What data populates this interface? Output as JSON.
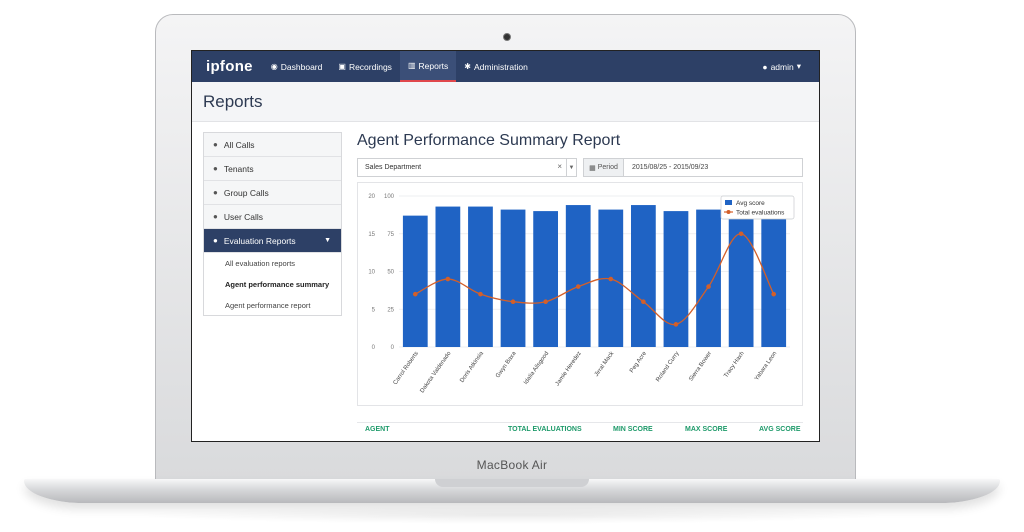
{
  "device": {
    "label": "MacBook Air"
  },
  "app": {
    "logo": "ipfone",
    "nav": [
      {
        "label": "Dashboard",
        "icon": "dashboard-icon"
      },
      {
        "label": "Recordings",
        "icon": "recordings-icon"
      },
      {
        "label": "Reports",
        "icon": "bar-chart-icon"
      },
      {
        "label": "Administration",
        "icon": "gear-icon"
      }
    ],
    "user": {
      "label": "admin"
    }
  },
  "page": {
    "title": "Reports"
  },
  "sidebar": {
    "items": [
      {
        "label": "All Calls"
      },
      {
        "label": "Tenants"
      },
      {
        "label": "Group Calls"
      },
      {
        "label": "User Calls"
      },
      {
        "label": "Evaluation Reports"
      }
    ],
    "subitems": [
      {
        "label": "All evaluation reports"
      },
      {
        "label": "Agent performance summary"
      },
      {
        "label": "Agent performance report"
      }
    ]
  },
  "report": {
    "title": "Agent Performance Summary Report",
    "department": "Sales Department",
    "period_label": "Period",
    "period_value": "2015/08/25 - 2015/09/23"
  },
  "table": {
    "headers": [
      "AGENT",
      "TOTAL EVALUATIONS",
      "MIN SCORE",
      "MAX SCORE",
      "AVG SCORE"
    ]
  },
  "chart_data": {
    "type": "bar",
    "categories": [
      "Carrol Roberts",
      "Dakota Valdenado",
      "Doris Atkinsia",
      "Gwyn Baxa",
      "Idalia Allsgood",
      "Jamie Heredez",
      "Jirral Mack",
      "Peg Acre",
      "Roland Curry",
      "Sierra Bower",
      "Tracy Haxh",
      "Yabara Leon"
    ],
    "series": [
      {
        "name": "Avg score",
        "axis": "right",
        "color": "#1f63c4",
        "values": [
          87,
          93,
          93,
          91,
          90,
          94,
          91,
          94,
          90,
          91,
          91,
          88
        ]
      },
      {
        "name": "Total evaluations",
        "axis": "left",
        "color": "#d35f29",
        "values": [
          7,
          9,
          7,
          6,
          6,
          8,
          9,
          6,
          3,
          8,
          15,
          7
        ]
      }
    ],
    "y_left": {
      "ticks": [
        0,
        5,
        10,
        15,
        20
      ],
      "range": [
        0,
        20
      ]
    },
    "y_right": {
      "ticks": [
        0,
        25,
        50,
        75,
        100
      ],
      "range": [
        0,
        100
      ]
    },
    "legend": "top-right",
    "grid": true
  }
}
